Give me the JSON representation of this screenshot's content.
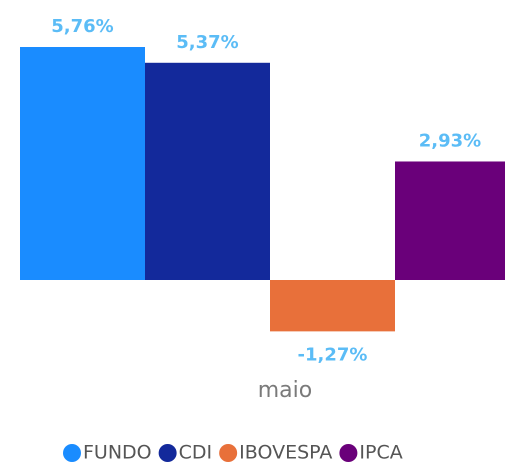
{
  "chart_data": {
    "type": "bar",
    "categories": [
      "maio"
    ],
    "series": [
      {
        "name": "FUNDO",
        "color": "#1a8cff",
        "values": [
          5.76
        ],
        "value_labels": [
          "5,76%"
        ]
      },
      {
        "name": "CDI",
        "color": "#13299b",
        "values": [
          5.37
        ],
        "value_labels": [
          "5,37%"
        ]
      },
      {
        "name": "IBOVESPA",
        "color": "#e8703a",
        "values": [
          -1.27
        ],
        "value_labels": [
          "-1,27%"
        ]
      },
      {
        "name": "IPCA",
        "color": "#6a007a",
        "values": [
          2.93
        ],
        "value_labels": [
          "2,93%"
        ]
      }
    ],
    "ylim": [
      -2,
      6
    ],
    "legend": "bottom"
  }
}
